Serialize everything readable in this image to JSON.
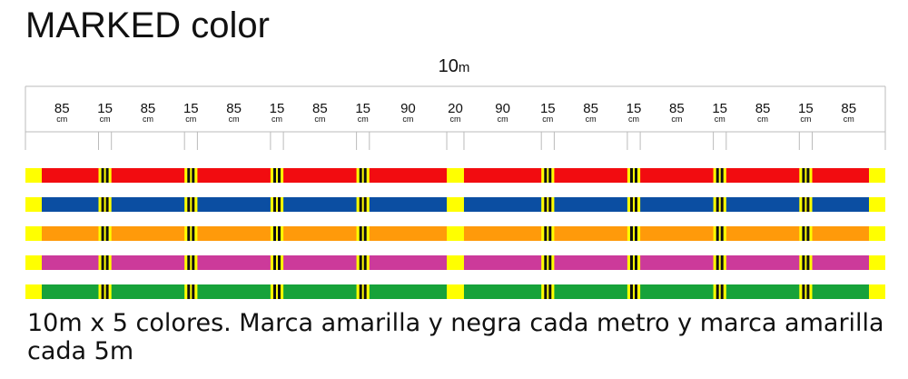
{
  "title": "MARKED color",
  "total_length": {
    "value": "10",
    "unit": "m"
  },
  "segments": [
    {
      "length": "85",
      "unit": "cm"
    },
    {
      "length": "15",
      "unit": "cm"
    },
    {
      "length": "85",
      "unit": "cm"
    },
    {
      "length": "15",
      "unit": "cm"
    },
    {
      "length": "85",
      "unit": "cm"
    },
    {
      "length": "15",
      "unit": "cm"
    },
    {
      "length": "85",
      "unit": "cm"
    },
    {
      "length": "15",
      "unit": "cm"
    },
    {
      "length": "90",
      "unit": "cm"
    },
    {
      "length": "20",
      "unit": "cm"
    },
    {
      "length": "90",
      "unit": "cm"
    },
    {
      "length": "15",
      "unit": "cm"
    },
    {
      "length": "85",
      "unit": "cm"
    },
    {
      "length": "15",
      "unit": "cm"
    },
    {
      "length": "85",
      "unit": "cm"
    },
    {
      "length": "15",
      "unit": "cm"
    },
    {
      "length": "85",
      "unit": "cm"
    },
    {
      "length": "15",
      "unit": "cm"
    },
    {
      "length": "85",
      "unit": "cm"
    }
  ],
  "line_colors": [
    {
      "name": "red",
      "hex": "#f20c10"
    },
    {
      "name": "blue",
      "hex": "#0b4ea2"
    },
    {
      "name": "orange",
      "hex": "#ff9a0a"
    },
    {
      "name": "pink",
      "hex": "#cc3a9a"
    },
    {
      "name": "green",
      "hex": "#17a23a"
    }
  ],
  "marker_colors": {
    "yellow": "#ffff00",
    "black": "#111111"
  },
  "caption": "10m x 5 colores. Marca amarilla y negra cada metro y marca amarilla cada 5m"
}
